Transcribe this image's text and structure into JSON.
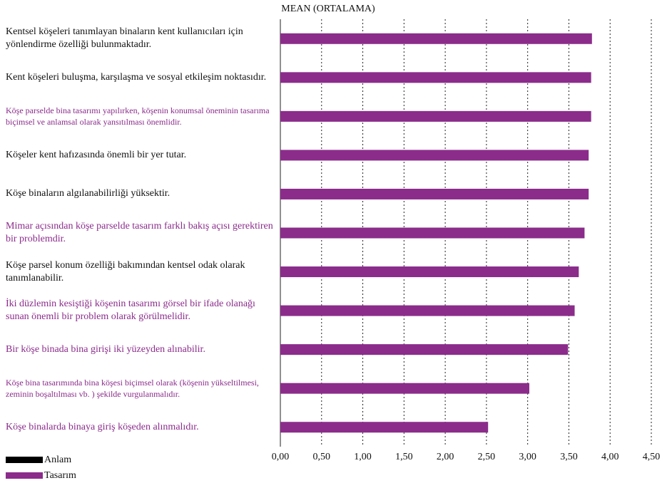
{
  "chart_data": {
    "type": "bar",
    "orientation": "horizontal",
    "title": "MEAN (ORTALAMA)",
    "xlim": [
      0,
      4.5
    ],
    "ticks": [
      "0,00",
      "0,50",
      "1,00",
      "1,50",
      "2,00",
      "2,50",
      "3,00",
      "3,50",
      "4,00",
      "4,50"
    ],
    "grid": "vertical dotted",
    "categories": [
      {
        "label": "Kentsel köşeleri tanımlayan binaların kent kullanıcıları için yönlendirme özelliği bulunmaktadır.",
        "color": "#111111",
        "size": "normal"
      },
      {
        "label": "Kent köşeleri buluşma, karşılaşma ve sosyal etkileşim noktasıdır.",
        "color": "#111111",
        "size": "normal"
      },
      {
        "label": "Köşe parselde bina tasarımı yapılırken, köşenin konumsal öneminin tasarıma biçimsel ve anlamsal olarak yansıtılması önemlidir.",
        "color": "#8b2c8b",
        "size": "small"
      },
      {
        "label": "Köşeler kent hafızasında önemli bir yer tutar.",
        "color": "#111111",
        "size": "normal"
      },
      {
        "label": "Köşe binaların algılanabilirliği yüksektir.",
        "color": "#111111",
        "size": "normal"
      },
      {
        "label": "Mimar açısından köşe parselde tasarım farklı bakış açısı gerektiren bir problemdir.",
        "color": "#8b2c8b",
        "size": "normal"
      },
      {
        "label": "Köşe parsel konum özelliği bakımından kentsel odak olarak tanımlanabilir.",
        "color": "#111111",
        "size": "normal"
      },
      {
        "label": "İki düzlemin kesiştiği köşenin tasarımı görsel bir ifade olanağı sunan önemli bir problem olarak görülmelidir.",
        "color": "#8b2c8b",
        "size": "normal"
      },
      {
        "label": "Bir köşe binada bina girişi iki yüzeyden alınabilir.",
        "color": "#8b2c8b",
        "size": "normal"
      },
      {
        "label": "Köşe bina tasarımında bina köşesi biçimsel olarak (köşenin yükseltilmesi, zeminin boşaltılması vb. ) şekilde vurgulanmalıdır.",
        "color": "#8b2c8b",
        "size": "small"
      },
      {
        "label": "Köşe binalarda binaya giriş köşeden alınmalıdır.",
        "color": "#8b2c8b",
        "size": "normal"
      }
    ],
    "series": [
      {
        "name": "Tasarım",
        "color": "#8b2c8b",
        "values": [
          3.78,
          3.77,
          3.77,
          3.74,
          3.74,
          3.69,
          3.62,
          3.57,
          3.49,
          3.02,
          2.52
        ]
      }
    ],
    "legend": {
      "placement": "bottom-left",
      "items": [
        {
          "name": "Anlam",
          "color": "#000000"
        },
        {
          "name": "Tasarım",
          "color": "#8b2c8b"
        }
      ]
    }
  }
}
